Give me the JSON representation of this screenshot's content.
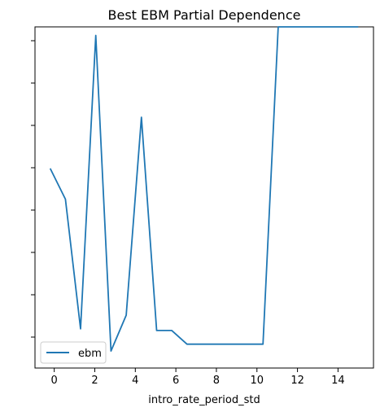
{
  "chart_data": {
    "type": "line",
    "title": "Best EBM Partial Dependence",
    "xlabel": "intro_rate_period_std",
    "ylabel": "",
    "xlim": [
      -0.95,
      15.75
    ],
    "ylim": [
      0.0,
      1.0
    ],
    "xticks": [
      0,
      2,
      4,
      6,
      8,
      10,
      12,
      14
    ],
    "ytick_count": 8,
    "ytick_labels_visible": false,
    "grid": false,
    "legend": {
      "position": "lower-left",
      "entries": [
        "ebm"
      ]
    },
    "series": [
      {
        "name": "ebm",
        "color": "#1f77b4",
        "x": [
          -0.2,
          0.55,
          1.3,
          2.05,
          2.8,
          3.55,
          4.3,
          5.05,
          5.8,
          6.55,
          7.3,
          8.05,
          8.8,
          9.55,
          10.3,
          11.05,
          11.8,
          12.55,
          13.3,
          14.05,
          15.0
        ],
        "y": [
          0.585,
          0.495,
          0.115,
          0.975,
          0.05,
          0.155,
          0.735,
          0.11,
          0.11,
          0.07,
          0.07,
          0.07,
          0.07,
          0.07,
          0.07,
          1.0,
          1.0,
          1.0,
          1.0,
          1.0,
          1.0
        ]
      }
    ]
  }
}
